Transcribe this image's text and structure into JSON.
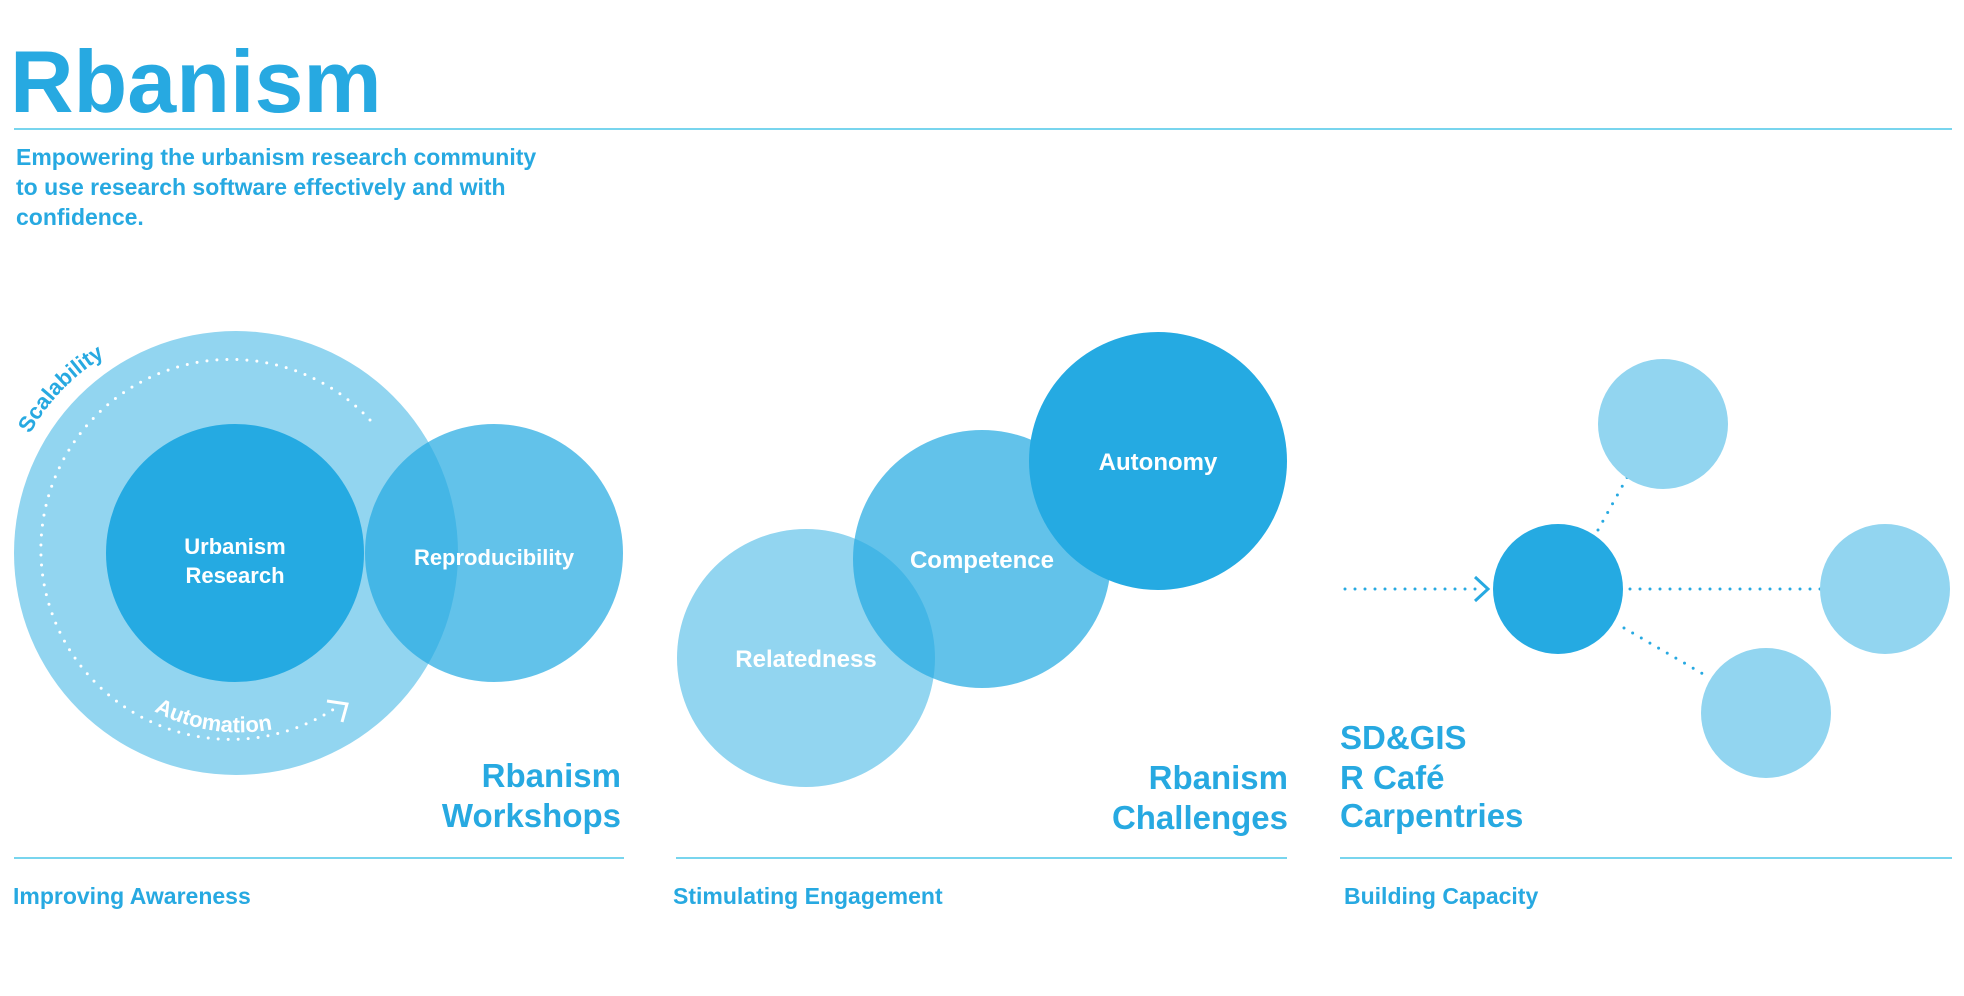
{
  "header": {
    "title": "Rbanism",
    "tagline_lines": [
      "Empowering the urbanism research community",
      "to use research software effectively and with",
      "confidence."
    ]
  },
  "colors": {
    "accent": "#27A9E1",
    "light": "#92D5F0",
    "medium": "#5BC0EB",
    "dark": "#25AAE2",
    "rule": "#4CC7E8"
  },
  "panels": {
    "awareness": {
      "circles": {
        "core_line1": "Urbanism",
        "core_line2": "Research",
        "side": "Reproducibility"
      },
      "arc_labels": {
        "top": "Scalability",
        "bottom": "Automation"
      },
      "heading_lines": [
        "Rbanism",
        "Workshops"
      ],
      "footer": "Improving Awareness"
    },
    "engagement": {
      "circles": {
        "left": "Relatedness",
        "middle": "Competence",
        "right": "Autonomy"
      },
      "heading_lines": [
        "Rbanism",
        "Challenges"
      ],
      "footer": "Stimulating Engagement"
    },
    "capacity": {
      "list": [
        "SD&GIS",
        "R Café",
        "Carpentries"
      ],
      "footer": "Building Capacity"
    }
  }
}
